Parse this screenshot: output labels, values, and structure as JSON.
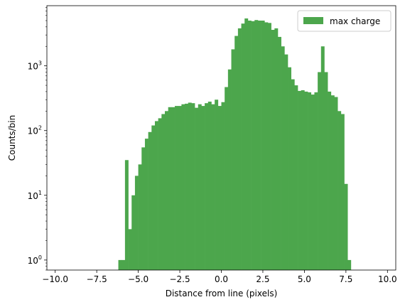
{
  "chart_data": {
    "type": "bar",
    "xlabel": "Distance from line (pixels)",
    "ylabel": "Counts/bin",
    "xlim": [
      -10.5,
      10.5
    ],
    "ylim": [
      0.7,
      8500
    ],
    "yscale": "log",
    "grid": false,
    "legend_position": "top-right",
    "bar_color": "#4ca64c",
    "x_ticks": [
      {
        "v": -10,
        "label": "−10.0"
      },
      {
        "v": -7.5,
        "label": "−7.5"
      },
      {
        "v": -5,
        "label": "−5.0"
      },
      {
        "v": -2.5,
        "label": "−2.5"
      },
      {
        "v": 0,
        "label": "0.0"
      },
      {
        "v": 2.5,
        "label": "2.5"
      },
      {
        "v": 5,
        "label": "5.0"
      },
      {
        "v": 7.5,
        "label": "7.5"
      },
      {
        "v": 10,
        "label": "10.0"
      }
    ],
    "y_ticks": [
      {
        "v": 1,
        "base": "10",
        "exp": "0"
      },
      {
        "v": 10,
        "base": "10",
        "exp": "1"
      },
      {
        "v": 100,
        "base": "10",
        "exp": "2"
      },
      {
        "v": 1000,
        "base": "10",
        "exp": "3"
      }
    ],
    "bin_start": -10,
    "bin_width": 0.2,
    "series": [
      {
        "name": "max charge",
        "values": [
          0,
          0,
          0,
          0,
          0,
          0,
          0,
          0,
          0,
          0,
          0,
          0,
          0,
          0,
          0,
          0,
          0,
          0,
          0,
          1,
          1,
          35,
          3,
          10,
          20,
          30,
          55,
          75,
          95,
          120,
          140,
          155,
          180,
          200,
          230,
          230,
          240,
          240,
          255,
          260,
          270,
          265,
          225,
          255,
          240,
          265,
          280,
          255,
          300,
          240,
          275,
          470,
          880,
          1800,
          2900,
          3800,
          4500,
          5400,
          5000,
          4900,
          5100,
          5000,
          5000,
          4700,
          4600,
          3600,
          3800,
          2800,
          2000,
          1500,
          950,
          620,
          500,
          410,
          420,
          400,
          390,
          360,
          390,
          800,
          2000,
          800,
          400,
          350,
          330,
          200,
          180,
          15,
          1,
          0,
          0,
          0,
          0,
          0,
          0,
          0,
          0,
          0,
          0,
          0,
          0,
          0,
          0,
          0,
          0,
          0,
          0,
          0,
          0,
          0,
          0,
          0,
          0
        ]
      }
    ]
  }
}
